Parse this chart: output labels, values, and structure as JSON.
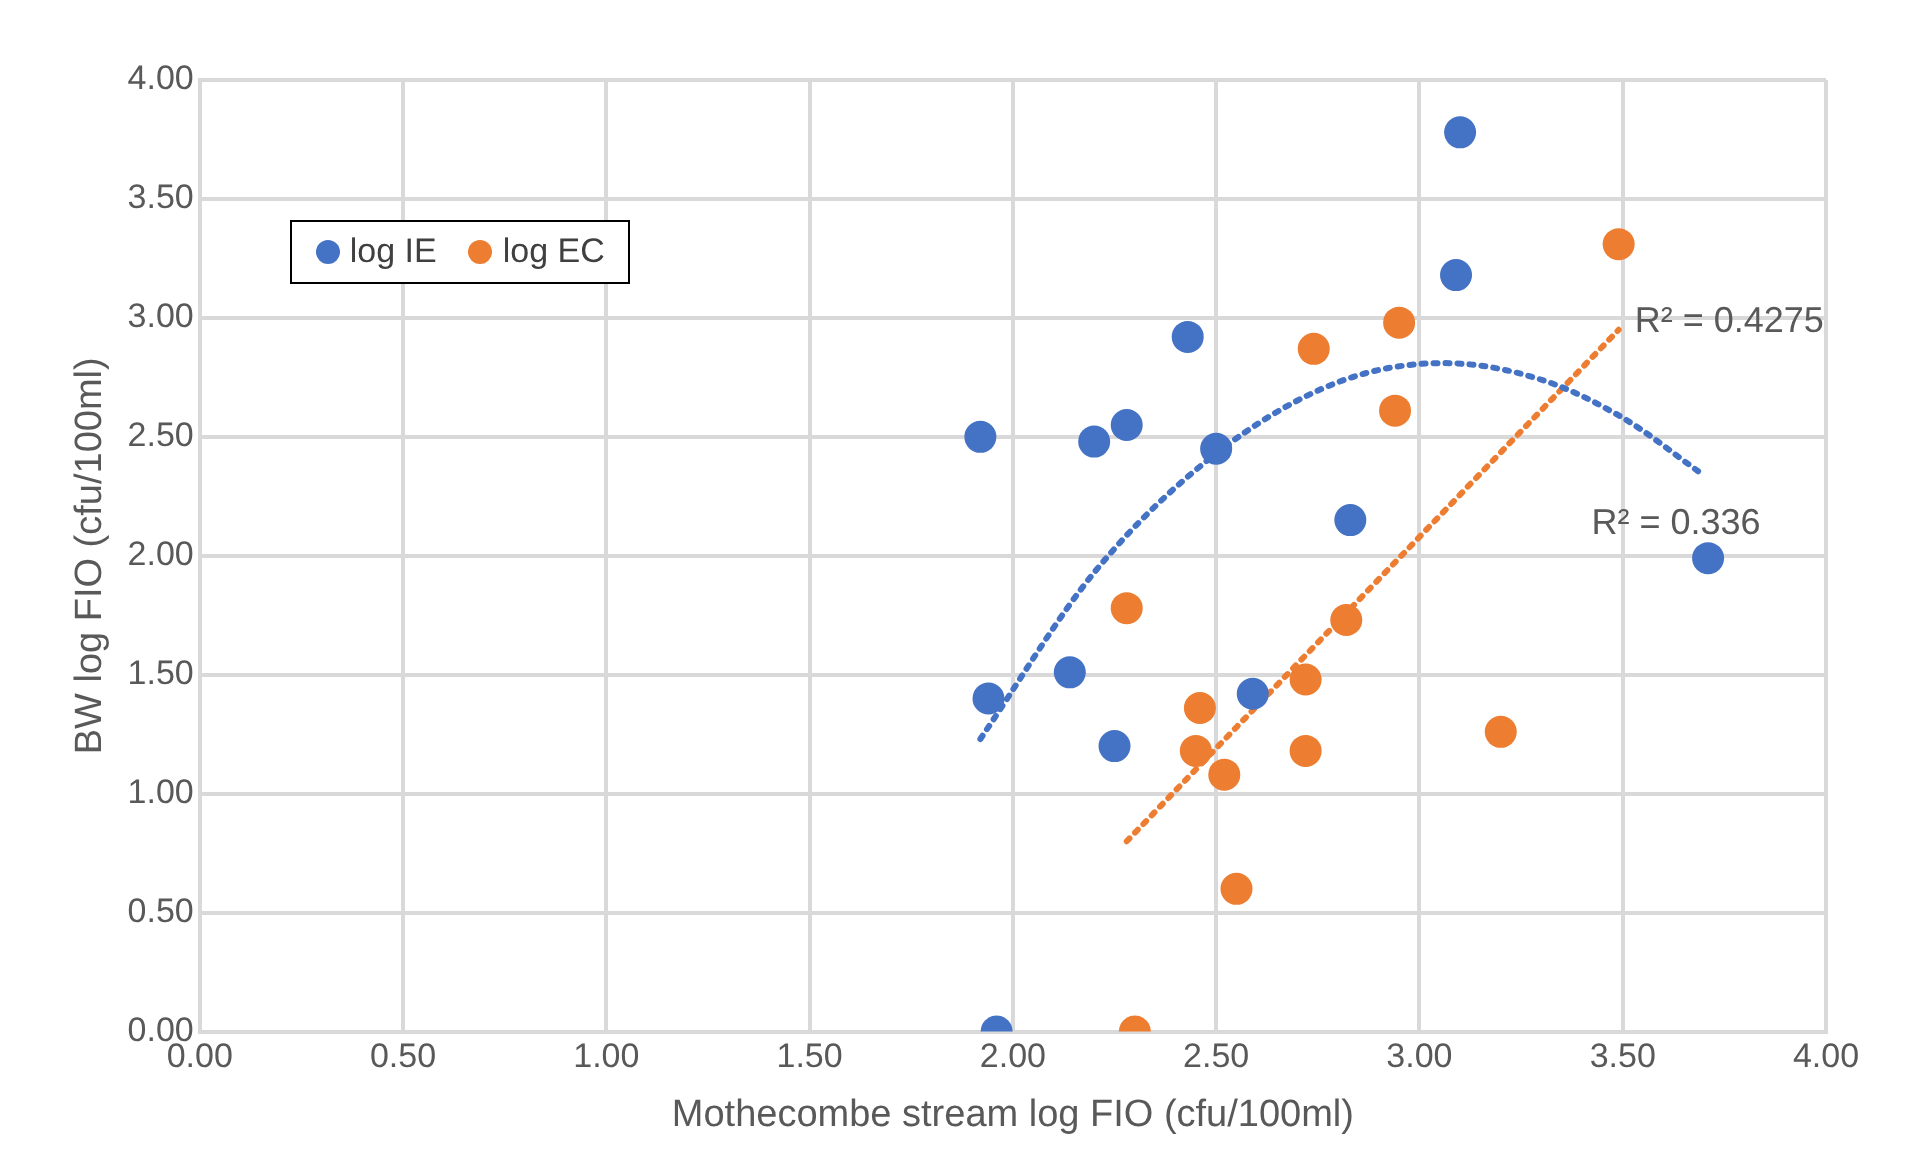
{
  "chart_data": {
    "type": "scatter",
    "xlabel": "Mothecombe stream log FIO (cfu/100ml)",
    "ylabel": "BW log FIO (cfu/100ml)",
    "xlim": [
      0,
      4
    ],
    "ylim": [
      0,
      4
    ],
    "xticks": [
      {
        "value": 0,
        "label": "0.00"
      },
      {
        "value": 0.5,
        "label": "0.50"
      },
      {
        "value": 1,
        "label": "1.00"
      },
      {
        "value": 1.5,
        "label": "1.50"
      },
      {
        "value": 2,
        "label": "2.00"
      },
      {
        "value": 2.5,
        "label": "2.50"
      },
      {
        "value": 3,
        "label": "3.00"
      },
      {
        "value": 3.5,
        "label": "3.50"
      },
      {
        "value": 4,
        "label": "4.00"
      }
    ],
    "yticks": [
      {
        "value": 0,
        "label": "0.00"
      },
      {
        "value": 0.5,
        "label": "0.50"
      },
      {
        "value": 1,
        "label": "1.00"
      },
      {
        "value": 1.5,
        "label": "1.50"
      },
      {
        "value": 2,
        "label": "2.00"
      },
      {
        "value": 2.5,
        "label": "2.50"
      },
      {
        "value": 3,
        "label": "3.00"
      },
      {
        "value": 3.5,
        "label": "3.50"
      },
      {
        "value": 4,
        "label": "4.00"
      }
    ],
    "grid": true,
    "legend": "top left",
    "marker": "circle",
    "series": [
      {
        "name": "log IE",
        "color": "#4472c4",
        "x": [
          1.92,
          1.94,
          1.96,
          2.14,
          2.2,
          2.25,
          2.28,
          2.43,
          2.5,
          2.59,
          2.83,
          3.1,
          3.09,
          3.71
        ],
        "values": [
          2.5,
          1.4,
          0,
          1.51,
          2.48,
          1.2,
          2.55,
          2.92,
          2.45,
          1.42,
          2.15,
          3.78,
          3.18,
          1.99
        ]
      },
      {
        "name": "log EC",
        "color": "#ed7d31",
        "x": [
          2.28,
          2.3,
          2.45,
          2.46,
          2.52,
          2.55,
          2.72,
          2.72,
          2.74,
          2.82,
          2.95,
          2.94,
          3.2,
          3.49
        ],
        "values": [
          1.78,
          0,
          1.18,
          1.36,
          1.08,
          0.6,
          1.48,
          1.18,
          2.87,
          1.73,
          2.98,
          2.61,
          1.26,
          3.31
        ]
      },
      {
        "type": "line",
        "color": "#4472c4",
        "line_style": "dotted",
        "marker": "none",
        "x": [
          1.92,
          2.2,
          2.5,
          2.8,
          3.06,
          3.3,
          3.5,
          3.69
        ],
        "values": [
          1.23,
          1.93,
          2.43,
          2.73,
          2.81,
          2.74,
          2.58,
          2.35
        ]
      },
      {
        "type": "line",
        "color": "#ed7d31",
        "line_style": "dotted",
        "marker": "none",
        "x": [
          2.28,
          3.49
        ],
        "values": [
          0.8,
          2.95
        ]
      }
    ],
    "annotations": [
      "R² = 0.4275",
      "R² = 0.336"
    ]
  }
}
